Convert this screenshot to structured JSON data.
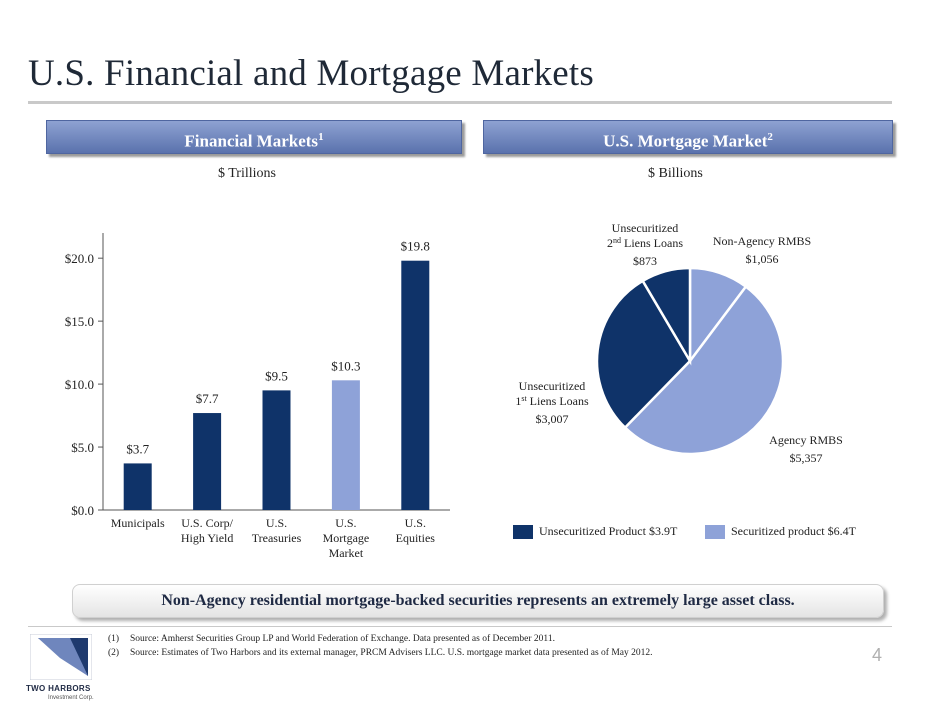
{
  "page": {
    "title": "U.S. Financial and Mortgage Markets",
    "page_number": "4"
  },
  "left_panel": {
    "header": "Financial Markets",
    "header_sup": "1",
    "unit": "$ Trillions"
  },
  "right_panel": {
    "header": "U.S. Mortgage Market",
    "header_sup": "2",
    "unit": "$ Billions"
  },
  "legend": {
    "unsecuritized": "Unsecuritized Product $3.9T",
    "securitized": "Securitized product $6.4T"
  },
  "callout": "Non-Agency residential mortgage-backed securities represents an extremely large asset class.",
  "footnotes": [
    {
      "num": "(1)",
      "text": "Source:  Amherst Securities Group LP and World Federation of Exchange.  Data presented as of December 2011."
    },
    {
      "num": "(2)",
      "text": "Source:  Estimates of Two Harbors and its external manager, PRCM Advisers LLC.  U.S. mortgage market data presented as of May 2012."
    }
  ],
  "logo": {
    "name": "TWO HARBORS",
    "sub": "Investment Corp."
  },
  "colors": {
    "dark_navy": "#0f3369",
    "light_blue": "#8ea2d8",
    "header_blue": "#5a72ad"
  },
  "chart_data": [
    {
      "type": "bar",
      "categories": [
        [
          "Municipals"
        ],
        [
          "U.S. Corp/",
          "High Yield"
        ],
        [
          "U.S.",
          "Treasuries"
        ],
        [
          "U.S.",
          "Mortgage",
          "Market"
        ],
        [
          "U.S.",
          "Equities"
        ]
      ],
      "values": [
        3.7,
        7.7,
        9.5,
        10.3,
        19.8
      ],
      "data_labels": [
        "$3.7",
        "$7.7",
        "$9.5",
        "$10.3",
        "$19.8"
      ],
      "bar_colors": [
        "#0f3369",
        "#0f3369",
        "#0f3369",
        "#8ea2d8",
        "#0f3369"
      ],
      "yticks": [
        0,
        5,
        10,
        15,
        20
      ],
      "ytick_labels": [
        "$0.0",
        "$5.0",
        "$10.0",
        "$15.0",
        "$20.0"
      ],
      "ylim": [
        0,
        22
      ],
      "grid": false
    },
    {
      "type": "pie",
      "slices": [
        {
          "label": [
            "Non-Agency RMBS"
          ],
          "value_label": "$1,056",
          "value": 1056,
          "color": "#8ea2d8"
        },
        {
          "label": [
            "Agency RMBS"
          ],
          "value_label": "$5,357",
          "value": 5357,
          "color": "#8ea2d8"
        },
        {
          "label": [
            "Unsecuritized",
            "1st Liens Loans"
          ],
          "value_label": "$3,007",
          "value": 3007,
          "color": "#0f3369"
        },
        {
          "label": [
            "Unsecuritized",
            "2nd Liens Loans"
          ],
          "value_label": "$873",
          "value": 873,
          "color": "#0f3369"
        }
      ]
    }
  ]
}
